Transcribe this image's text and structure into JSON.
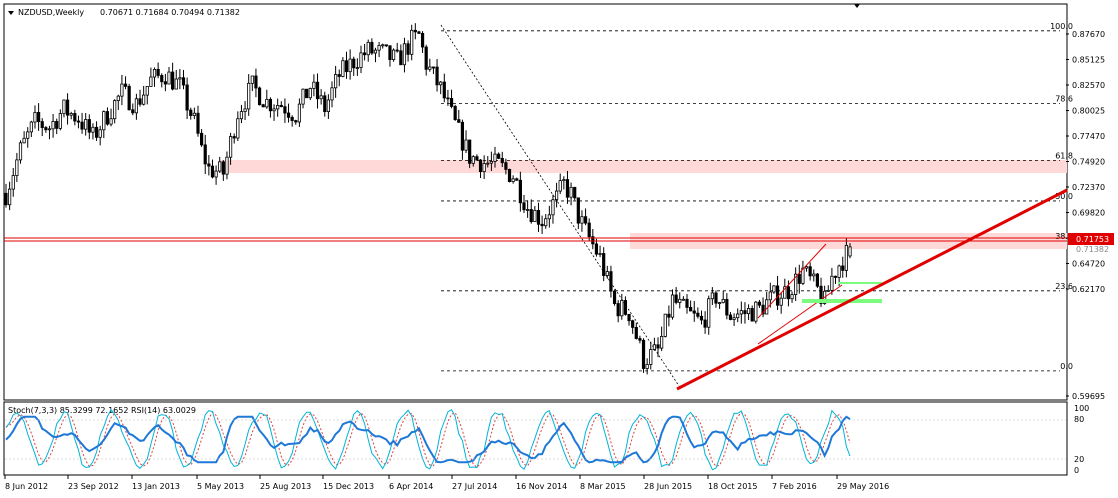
{
  "header": {
    "symbol": "NZDUSD,Weekly",
    "ohlc": "0.70671 0.71684 0.70494 0.71382"
  },
  "chart_data": {
    "type": "candlestick",
    "symbol": "NZDUSD",
    "timeframe": "Weekly",
    "ohlc_last": {
      "open": 0.70671,
      "high": 0.71684,
      "low": 0.70494,
      "close": 0.71382
    },
    "price_range": [
      0.5942,
      0.9041
    ],
    "y_ticks": [
      "0.87670",
      "0.85125",
      "0.82570",
      "0.80025",
      "0.77470",
      "0.74920",
      "0.72370",
      "0.69820",
      "0.67270",
      "0.64720",
      "0.62170",
      "0.59695"
    ],
    "x_ticks": [
      "8 Jun 2012",
      "23 Sep 2012",
      "13 Jan 2013",
      "5 May 2013",
      "25 Aug 2013",
      "15 Dec 2013",
      "6 Apr 2014",
      "27 Jul 2014",
      "16 Nov 2014",
      "8 Mar 2015",
      "28 Jun 2015",
      "18 Oct 2015",
      "7 Feb 2016",
      "29 May 2016"
    ],
    "price_points": [
      [
        0,
        0.756
      ],
      [
        4,
        0.79
      ],
      [
        8,
        0.812
      ],
      [
        12,
        0.808
      ],
      [
        16,
        0.822
      ],
      [
        20,
        0.815
      ],
      [
        24,
        0.8
      ],
      [
        28,
        0.818
      ],
      [
        32,
        0.835
      ],
      [
        36,
        0.826
      ],
      [
        40,
        0.845
      ],
      [
        44,
        0.85
      ],
      [
        48,
        0.84
      ],
      [
        52,
        0.812
      ],
      [
        54,
        0.79
      ],
      [
        56,
        0.775
      ],
      [
        60,
        0.772
      ],
      [
        64,
        0.82
      ],
      [
        68,
        0.84
      ],
      [
        72,
        0.828
      ],
      [
        76,
        0.826
      ],
      [
        80,
        0.818
      ],
      [
        84,
        0.84
      ],
      [
        88,
        0.823
      ],
      [
        92,
        0.849
      ],
      [
        96,
        0.86
      ],
      [
        100,
        0.868
      ],
      [
        104,
        0.866
      ],
      [
        108,
        0.86
      ],
      [
        112,
        0.876
      ],
      [
        114,
        0.88
      ],
      [
        116,
        0.858
      ],
      [
        120,
        0.838
      ],
      [
        124,
        0.81
      ],
      [
        128,
        0.785
      ],
      [
        132,
        0.78
      ],
      [
        136,
        0.778
      ],
      [
        140,
        0.77
      ],
      [
        144,
        0.745
      ],
      [
        148,
        0.735
      ],
      [
        152,
        0.752
      ],
      [
        154,
        0.763
      ],
      [
        156,
        0.755
      ],
      [
        158,
        0.738
      ],
      [
        160,
        0.726
      ],
      [
        164,
        0.705
      ],
      [
        168,
        0.668
      ],
      [
        172,
        0.662
      ],
      [
        176,
        0.625
      ],
      [
        180,
        0.632
      ],
      [
        184,
        0.672
      ],
      [
        188,
        0.662
      ],
      [
        192,
        0.654
      ],
      [
        196,
        0.675
      ],
      [
        200,
        0.66
      ],
      [
        204,
        0.662
      ],
      [
        208,
        0.665
      ],
      [
        212,
        0.675
      ],
      [
        216,
        0.68
      ],
      [
        220,
        0.695
      ],
      [
        224,
        0.68
      ],
      [
        226,
        0.67
      ],
      [
        228,
        0.69
      ],
      [
        230,
        0.7
      ],
      [
        232,
        0.708
      ],
      [
        233,
        0.7138
      ]
    ],
    "indicator": {
      "label": "Stoch(7,3,3) 85.3299 72.1652  RSI(14) 63.0029",
      "y_ticks": [
        "100",
        "80",
        "20",
        "0"
      ]
    }
  },
  "annotations": {
    "price_tag": "0.71753",
    "price_tag_under": "0.71382",
    "fib_levels": [
      {
        "label": "100.0",
        "price": 0.8838
      },
      {
        "label": "78.6",
        "price": 0.8265
      },
      {
        "label": "61.8",
        "price": 0.7817
      },
      {
        "label": "50.0",
        "price": 0.75
      },
      {
        "label": "38.2",
        "price": 0.7185
      },
      {
        "label": "23.6",
        "price": 0.6793
      },
      {
        "label": "0.0",
        "price": 0.6163
      }
    ]
  },
  "colors": {
    "background": "#ffffff",
    "candles": "#000000",
    "trendline": "#e00000",
    "resistance": "#e00000",
    "zone": "#ffd8d8",
    "green_zone": "#7cfc7c",
    "stoch_main": "#00b4d8",
    "stoch_signal": "#e04040",
    "rsi": "#1e78d7"
  }
}
